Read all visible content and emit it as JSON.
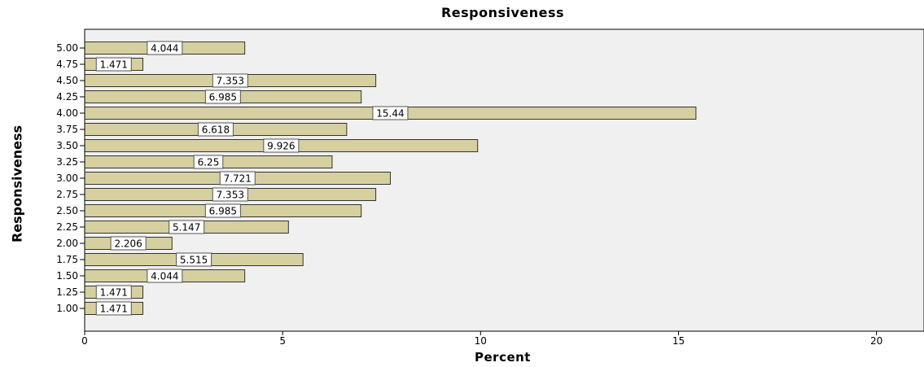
{
  "chart_data": {
    "type": "bar",
    "orientation": "horizontal",
    "title": "Responsiveness",
    "xlabel": "Percent",
    "ylabel": "Responsiveness",
    "categories": [
      "1.00",
      "1.25",
      "1.50",
      "1.75",
      "2.00",
      "2.25",
      "2.50",
      "2.75",
      "3.00",
      "3.25",
      "3.50",
      "3.75",
      "4.00",
      "4.25",
      "4.50",
      "4.75",
      "5.00"
    ],
    "values": [
      1.471,
      1.471,
      4.044,
      5.515,
      2.206,
      5.147,
      6.985,
      7.353,
      7.721,
      6.25,
      9.926,
      6.618,
      15.44,
      6.985,
      7.353,
      1.471,
      4.044
    ],
    "value_labels": [
      "1.471",
      "1.471",
      "4.044",
      "5.515",
      "2.206",
      "5.147",
      "6.985",
      "7.353",
      "7.721",
      "6.25",
      "9.926",
      "6.618",
      "15.44",
      "6.985",
      "7.353",
      "1.471",
      "4.044"
    ],
    "xlim": [
      0,
      21.2
    ],
    "x_ticks": [
      0,
      5,
      10,
      15,
      20
    ],
    "x_tick_labels": [
      "0",
      "5",
      "10",
      "15",
      "20"
    ],
    "grid": false,
    "legend": "none",
    "colors": {
      "bar_fill": "#d6cf9f",
      "bar_stroke": "#333333",
      "plot_background": "#f0f0f0",
      "label_box": "#ffffff"
    }
  }
}
